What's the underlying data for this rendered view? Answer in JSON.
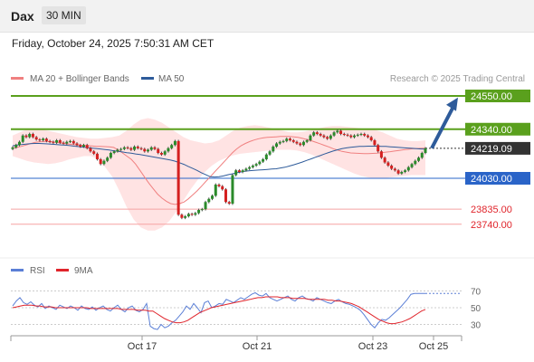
{
  "header": {
    "symbol": "Dax",
    "timeframe": "30 MIN",
    "datetime": "Friday, October 24, 2025 7:50:31 AM CET"
  },
  "chart_data": [
    {
      "type": "candlestick",
      "legend": [
        {
          "label": "MA 20 + Bollinger Bands",
          "color": "#f08080"
        },
        {
          "label": "MA 50",
          "color": "#2e5b9a"
        }
      ],
      "source": "Research © 2025 Trading Central",
      "ylim": [
        23590,
        24600
      ],
      "price_lines": [
        {
          "value": 24550,
          "label": "24550.00",
          "kind": "resistance"
        },
        {
          "value": 24340,
          "label": "24340.00",
          "kind": "resistance"
        },
        {
          "value": 24219.09,
          "label": "24219.09",
          "kind": "last"
        },
        {
          "value": 24030,
          "label": "24030.00",
          "kind": "pivot"
        },
        {
          "value": 23835,
          "label": "23835.00",
          "kind": "support"
        },
        {
          "value": 23740,
          "label": "23740.00",
          "kind": "support"
        }
      ],
      "target_arrow": {
        "from": 24220,
        "to": 24540
      },
      "candles_close": [
        24225,
        24240,
        24260,
        24300,
        24290,
        24310,
        24290,
        24275,
        24270,
        24280,
        24265,
        24260,
        24255,
        24270,
        24255,
        24250,
        24260,
        24265,
        24250,
        24240,
        24230,
        24240,
        24220,
        24200,
        24185,
        24150,
        24120,
        24140,
        24160,
        24190,
        24200,
        24210,
        24215,
        24225,
        24220,
        24210,
        24230,
        24220,
        24215,
        24200,
        24210,
        24225,
        24215,
        24190,
        24180,
        24200,
        24220,
        24240,
        24265,
        23800,
        23780,
        23790,
        23805,
        23800,
        23810,
        23830,
        23835,
        23880,
        23900,
        23920,
        23990,
        23980,
        23960,
        23880,
        23870,
        24050,
        24080,
        24070,
        24080,
        24090,
        24100,
        24110,
        24120,
        24135,
        24150,
        24180,
        24200,
        24230,
        24250,
        24260,
        24265,
        24280,
        24270,
        24260,
        24250,
        24240,
        24260,
        24270,
        24300,
        24320,
        24310,
        24300,
        24290,
        24280,
        24300,
        24320,
        24330,
        24310,
        24305,
        24300,
        24290,
        24300,
        24305,
        24310,
        24300,
        24290,
        24270,
        24240,
        24200,
        24160,
        24130,
        24110,
        24090,
        24080,
        24060,
        24070,
        24080,
        24100,
        24120,
        24140,
        24160,
        24190,
        24219.09
      ],
      "ma50": [
        24235,
        24240,
        24243,
        24246,
        24248,
        24250,
        24250,
        24249,
        24247,
        24245,
        24243,
        24241,
        24239,
        24236,
        24233,
        24230,
        24227,
        24224,
        24221,
        24218,
        24215,
        24212,
        24208,
        24204,
        24200,
        24196,
        24192,
        24188,
        24184,
        24180,
        24175,
        24170,
        24165,
        24160,
        24155,
        24150,
        24145,
        24138,
        24128,
        24118,
        24105,
        24092,
        24080,
        24065,
        24052,
        24040,
        24038,
        24040,
        24045,
        24052,
        24058,
        24065,
        24070,
        24075,
        24078,
        24080,
        24082,
        24084,
        24086,
        24088,
        24090,
        24095,
        24100,
        24107,
        24115,
        24124,
        24133,
        24143,
        24153,
        24163,
        24173,
        24183,
        24193,
        24202,
        24210,
        24217,
        24222,
        24226,
        24229,
        24231,
        24232,
        24233,
        24233,
        24233,
        24232,
        24231,
        24229,
        24227,
        24225,
        24223,
        24221,
        24219,
        24217,
        24215,
        24214
      ],
      "ma20": [
        24220,
        24225,
        24232,
        24240,
        24248,
        24256,
        24260,
        24262,
        24262,
        24260,
        24257,
        24253,
        24249,
        24245,
        24242,
        24240,
        24238,
        24236,
        24234,
        24232,
        24232,
        24230,
        24228,
        24225,
        24210,
        24190,
        24170,
        24150,
        24120,
        24080,
        24040,
        24000,
        23965,
        23930,
        23905,
        23885,
        23870,
        23865,
        23870,
        23880,
        23900,
        23925,
        23950,
        23980,
        24010,
        24040,
        24070,
        24100,
        24130,
        24160,
        24190,
        24215,
        24235,
        24250,
        24262,
        24272,
        24280,
        24285,
        24288,
        24290,
        24292,
        24294,
        24294,
        24294,
        24292,
        24288,
        24282,
        24275,
        24267,
        24258,
        24248,
        24238,
        24228,
        24217,
        24208,
        24200,
        24195,
        24190,
        24188,
        24187,
        24186,
        24186,
        24187,
        24189,
        24192,
        24195,
        24198,
        24202,
        24206,
        24210,
        24213,
        24216,
        24218,
        24219,
        24220
      ],
      "bollinger_upper": [
        24300,
        24320,
        24340,
        24345,
        24340,
        24330,
        24320,
        24310,
        24300,
        24290,
        24285,
        24280,
        24280,
        24285,
        24290,
        24300,
        24330,
        24370,
        24400,
        24410,
        24400,
        24380,
        24350,
        24320,
        24290,
        24270,
        24260,
        24250,
        24255,
        24270,
        24300,
        24330,
        24350,
        24360,
        24365,
        24360,
        24350,
        24340,
        24330,
        24320,
        24320,
        24325,
        24335,
        24345,
        24355,
        24360,
        24360,
        24355,
        24350,
        24345,
        24340,
        24335,
        24320,
        24300,
        24280,
        24270,
        24265,
        24265,
        24270
      ],
      "bollinger_lower": [
        24170,
        24155,
        24140,
        24130,
        24125,
        24120,
        24125,
        24135,
        24150,
        24160,
        24170,
        24170,
        24150,
        24100,
        24040,
        23950,
        23850,
        23770,
        23720,
        23700,
        23700,
        23720,
        23760,
        23820,
        23890,
        23960,
        24020,
        24070,
        24110,
        24140,
        24160,
        24175,
        24185,
        24190,
        24195,
        24200,
        24205,
        24210,
        24210,
        24210,
        24205,
        24195,
        24180,
        24160,
        24140,
        24120,
        24100,
        24080,
        24060,
        24045,
        24035,
        24030,
        24030,
        24035,
        24040,
        24045,
        24050,
        24050,
        24050
      ],
      "x_ticks": [
        "Oct 17",
        "Oct 21",
        "Oct 23",
        "Oct 25"
      ]
    },
    {
      "type": "line",
      "legend": [
        {
          "label": "RSI",
          "color": "#5b7fd6"
        },
        {
          "label": "9MA",
          "color": "#e0242b"
        }
      ],
      "ylim": [
        20,
        78
      ],
      "levels": [
        70,
        50,
        30
      ],
      "rsi": [
        52,
        58,
        62,
        56,
        54,
        57,
        53,
        51,
        55,
        49,
        52,
        50,
        48,
        53,
        51,
        49,
        52,
        50,
        47,
        52,
        49,
        48,
        51,
        47,
        50,
        52,
        48,
        46,
        50,
        53,
        48,
        45,
        50,
        52,
        47,
        45,
        48,
        55,
        28,
        25,
        24,
        30,
        26,
        28,
        32,
        35,
        40,
        45,
        52,
        48,
        55,
        50,
        44,
        56,
        58,
        50,
        52,
        55,
        54,
        60,
        58,
        56,
        59,
        62,
        60,
        63,
        66,
        68,
        65,
        64,
        67,
        62,
        60,
        58,
        60,
        62,
        64,
        60,
        58,
        62,
        64,
        61,
        60,
        58,
        62,
        60,
        58,
        56,
        55,
        58,
        60,
        57,
        55,
        54,
        52,
        50,
        47,
        42,
        36,
        30,
        26,
        32,
        36,
        35,
        38,
        42,
        46,
        50,
        55,
        60,
        66,
        67,
        67,
        67,
        67
      ],
      "ma9": [
        50,
        51,
        52,
        53,
        53,
        53,
        52,
        52,
        51,
        51,
        51,
        50,
        50,
        50,
        50,
        50,
        50,
        50,
        50,
        50,
        49,
        49,
        49,
        49,
        49,
        49,
        49,
        49,
        48,
        48,
        48,
        48,
        47,
        47,
        47,
        46,
        46,
        43,
        40,
        37,
        35,
        33,
        32,
        32,
        33,
        35,
        38,
        41,
        44,
        46,
        48,
        50,
        51,
        52,
        53,
        54,
        55,
        56,
        57,
        58,
        59,
        60,
        61,
        62,
        62,
        63,
        63,
        63,
        63,
        62,
        62,
        62,
        61,
        61,
        61,
        61,
        60,
        60,
        60,
        60,
        60,
        59,
        59,
        58,
        58,
        57,
        56,
        55,
        53,
        51,
        48,
        45,
        42,
        39,
        36,
        34,
        32,
        31,
        31,
        32,
        33,
        35,
        37,
        40,
        43,
        46,
        48
      ]
    }
  ]
}
